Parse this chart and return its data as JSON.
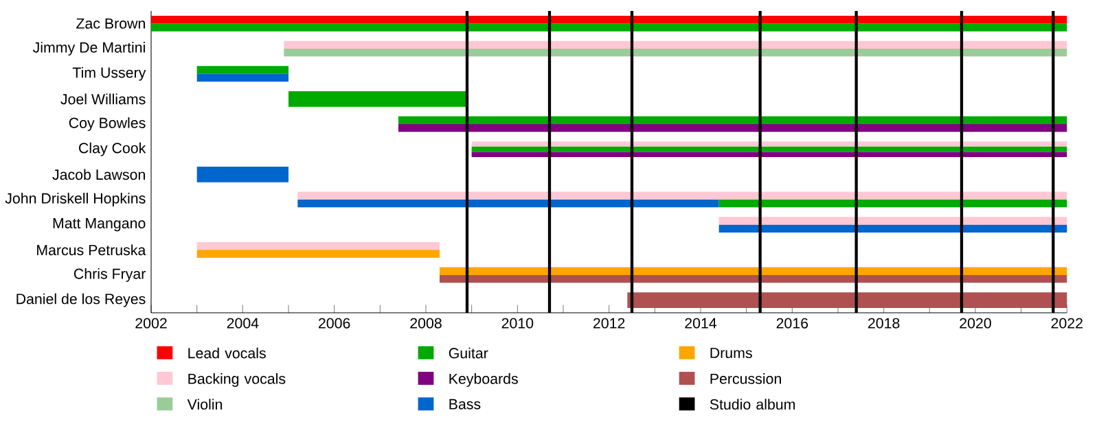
{
  "chart_data": {
    "type": "bar",
    "orientation": "horizontal",
    "legend": "bottom",
    "categories": [
      "Zac Brown",
      "Jimmy De Martini",
      "Tim Ussery",
      "Joel Williams",
      "Coy Bowles",
      "Clay Cook",
      "Jacob Lawson",
      "John Driskell Hopkins",
      "Matt Mangano",
      "Marcus Petruska",
      "Chris Fryar",
      "Daniel de los Reyes"
    ],
    "xlim": [
      2002,
      2022
    ],
    "xticks": [
      2002,
      {
        "value": 2003,
        "label": null
      },
      2004,
      {
        "value": 2005,
        "label": null
      },
      2006,
      {
        "value": 2007,
        "label": null
      },
      2008,
      {
        "value": 2009,
        "label": null
      },
      2010,
      {
        "value": 2011,
        "label": null
      },
      2012,
      {
        "value": 2013,
        "label": null
      },
      2014,
      {
        "value": 2015,
        "label": null
      },
      2016,
      {
        "value": 2017,
        "label": null
      },
      2018,
      {
        "value": 2019,
        "label": null
      },
      2020,
      {
        "value": 2021,
        "label": null
      },
      2022
    ],
    "series": [
      {
        "name": "Lead vocals",
        "color": "#ff0000",
        "base": [
          2002,
          null,
          null,
          null,
          null,
          null,
          null,
          null,
          null,
          null,
          null,
          null
        ],
        "values": [
          20,
          null,
          null,
          null,
          null,
          null,
          null,
          null,
          null,
          null,
          null,
          null
        ]
      },
      {
        "name": "Backing vocals",
        "color": "#ffc8d4",
        "base": [
          null,
          2004.9,
          null,
          null,
          null,
          2009.0,
          null,
          2005.2,
          2014.4,
          2003.0,
          null,
          null
        ],
        "values": [
          null,
          17.1,
          null,
          null,
          null,
          13.0,
          null,
          16.8,
          7.6,
          5.3,
          null,
          null
        ]
      },
      {
        "name": "Violin",
        "color": "#99cc99",
        "base": [
          null,
          2004.9,
          null,
          null,
          null,
          null,
          null,
          null,
          null,
          null,
          null,
          null
        ],
        "values": [
          null,
          17.1,
          null,
          null,
          null,
          null,
          null,
          null,
          null,
          null,
          null,
          null
        ]
      },
      {
        "name": "Guitar",
        "color": "#00aa00",
        "base": [
          2002,
          null,
          2003.0,
          2005.0,
          2007.4,
          2009.0,
          null,
          2014.4,
          null,
          null,
          null,
          null
        ],
        "values": [
          20,
          null,
          2.0,
          3.9,
          14.6,
          13.0,
          null,
          7.6,
          null,
          null,
          null,
          null
        ]
      },
      {
        "name": "Keyboards",
        "color": "#800080",
        "base": [
          null,
          null,
          null,
          null,
          2007.4,
          2009.0,
          null,
          null,
          null,
          null,
          null,
          null
        ],
        "values": [
          null,
          null,
          null,
          null,
          14.6,
          13.0,
          null,
          null,
          null,
          null,
          null,
          null
        ]
      },
      {
        "name": "Bass",
        "color": "#0066cc",
        "base": [
          null,
          null,
          2003.0,
          null,
          null,
          null,
          2003.0,
          2005.2,
          2014.4,
          null,
          null,
          null
        ],
        "values": [
          null,
          null,
          2.0,
          null,
          null,
          null,
          2.0,
          9.2,
          7.6,
          null,
          null,
          null
        ]
      },
      {
        "name": "Drums",
        "color": "#ffa500",
        "base": [
          null,
          null,
          null,
          null,
          null,
          null,
          null,
          null,
          null,
          2003.0,
          2008.3,
          null
        ],
        "values": [
          null,
          null,
          null,
          null,
          null,
          null,
          null,
          null,
          null,
          5.3,
          13.7,
          null
        ]
      },
      {
        "name": "Percussion",
        "color": "#b05050",
        "base": [
          null,
          null,
          null,
          null,
          null,
          null,
          null,
          null,
          null,
          null,
          2008.3,
          2012.4
        ],
        "values": [
          null,
          null,
          null,
          null,
          null,
          null,
          null,
          null,
          null,
          null,
          13.7,
          9.6
        ]
      }
    ],
    "ref_lines": [
      {
        "axis": "x",
        "value": 2008.9,
        "label": "Studio album",
        "color": "#000000"
      },
      {
        "axis": "x",
        "value": 2010.7,
        "color": "#000000"
      },
      {
        "axis": "x",
        "value": 2012.5,
        "color": "#000000"
      },
      {
        "axis": "x",
        "value": 2015.3,
        "color": "#000000"
      },
      {
        "axis": "x",
        "value": 2017.4,
        "color": "#000000"
      },
      {
        "axis": "x",
        "value": 2019.7,
        "color": "#000000"
      },
      {
        "axis": "x",
        "value": 2021.7,
        "color": "#000000"
      }
    ]
  }
}
